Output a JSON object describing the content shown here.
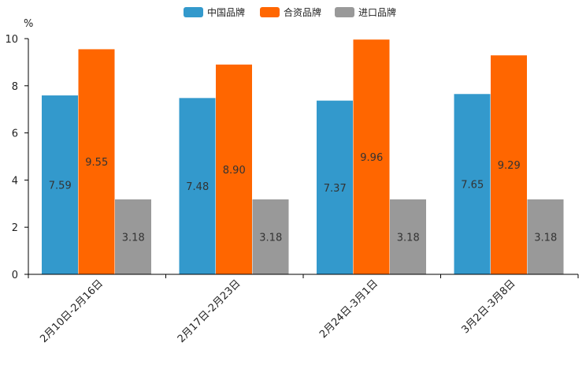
{
  "chart_data": {
    "type": "bar",
    "ylabel": "%",
    "ylim": [
      0,
      10
    ],
    "yticks": [
      0,
      2,
      4,
      6,
      8,
      10
    ],
    "categories": [
      "2月10日-2月16日",
      "2月17日-2月23日",
      "2月24日-3月1日",
      "3月2日-3月8日"
    ],
    "series": [
      {
        "name": "中国品牌",
        "color": "#3399cc",
        "values": [
          7.59,
          7.48,
          7.37,
          7.65
        ],
        "labels": [
          "7.59",
          "7.48",
          "7.37",
          "7.65"
        ]
      },
      {
        "name": "合资品牌",
        "color": "#ff6600",
        "values": [
          9.55,
          8.9,
          9.96,
          9.29
        ],
        "labels": [
          "9.55",
          "8.90",
          "9.96",
          "9.29"
        ]
      },
      {
        "name": "进口品牌",
        "color": "#999999",
        "values": [
          3.18,
          3.18,
          3.18,
          3.18
        ],
        "labels": [
          "3.18",
          "3.18",
          "3.18",
          "3.18"
        ]
      }
    ],
    "legend_position": "top-center",
    "grid": false
  }
}
